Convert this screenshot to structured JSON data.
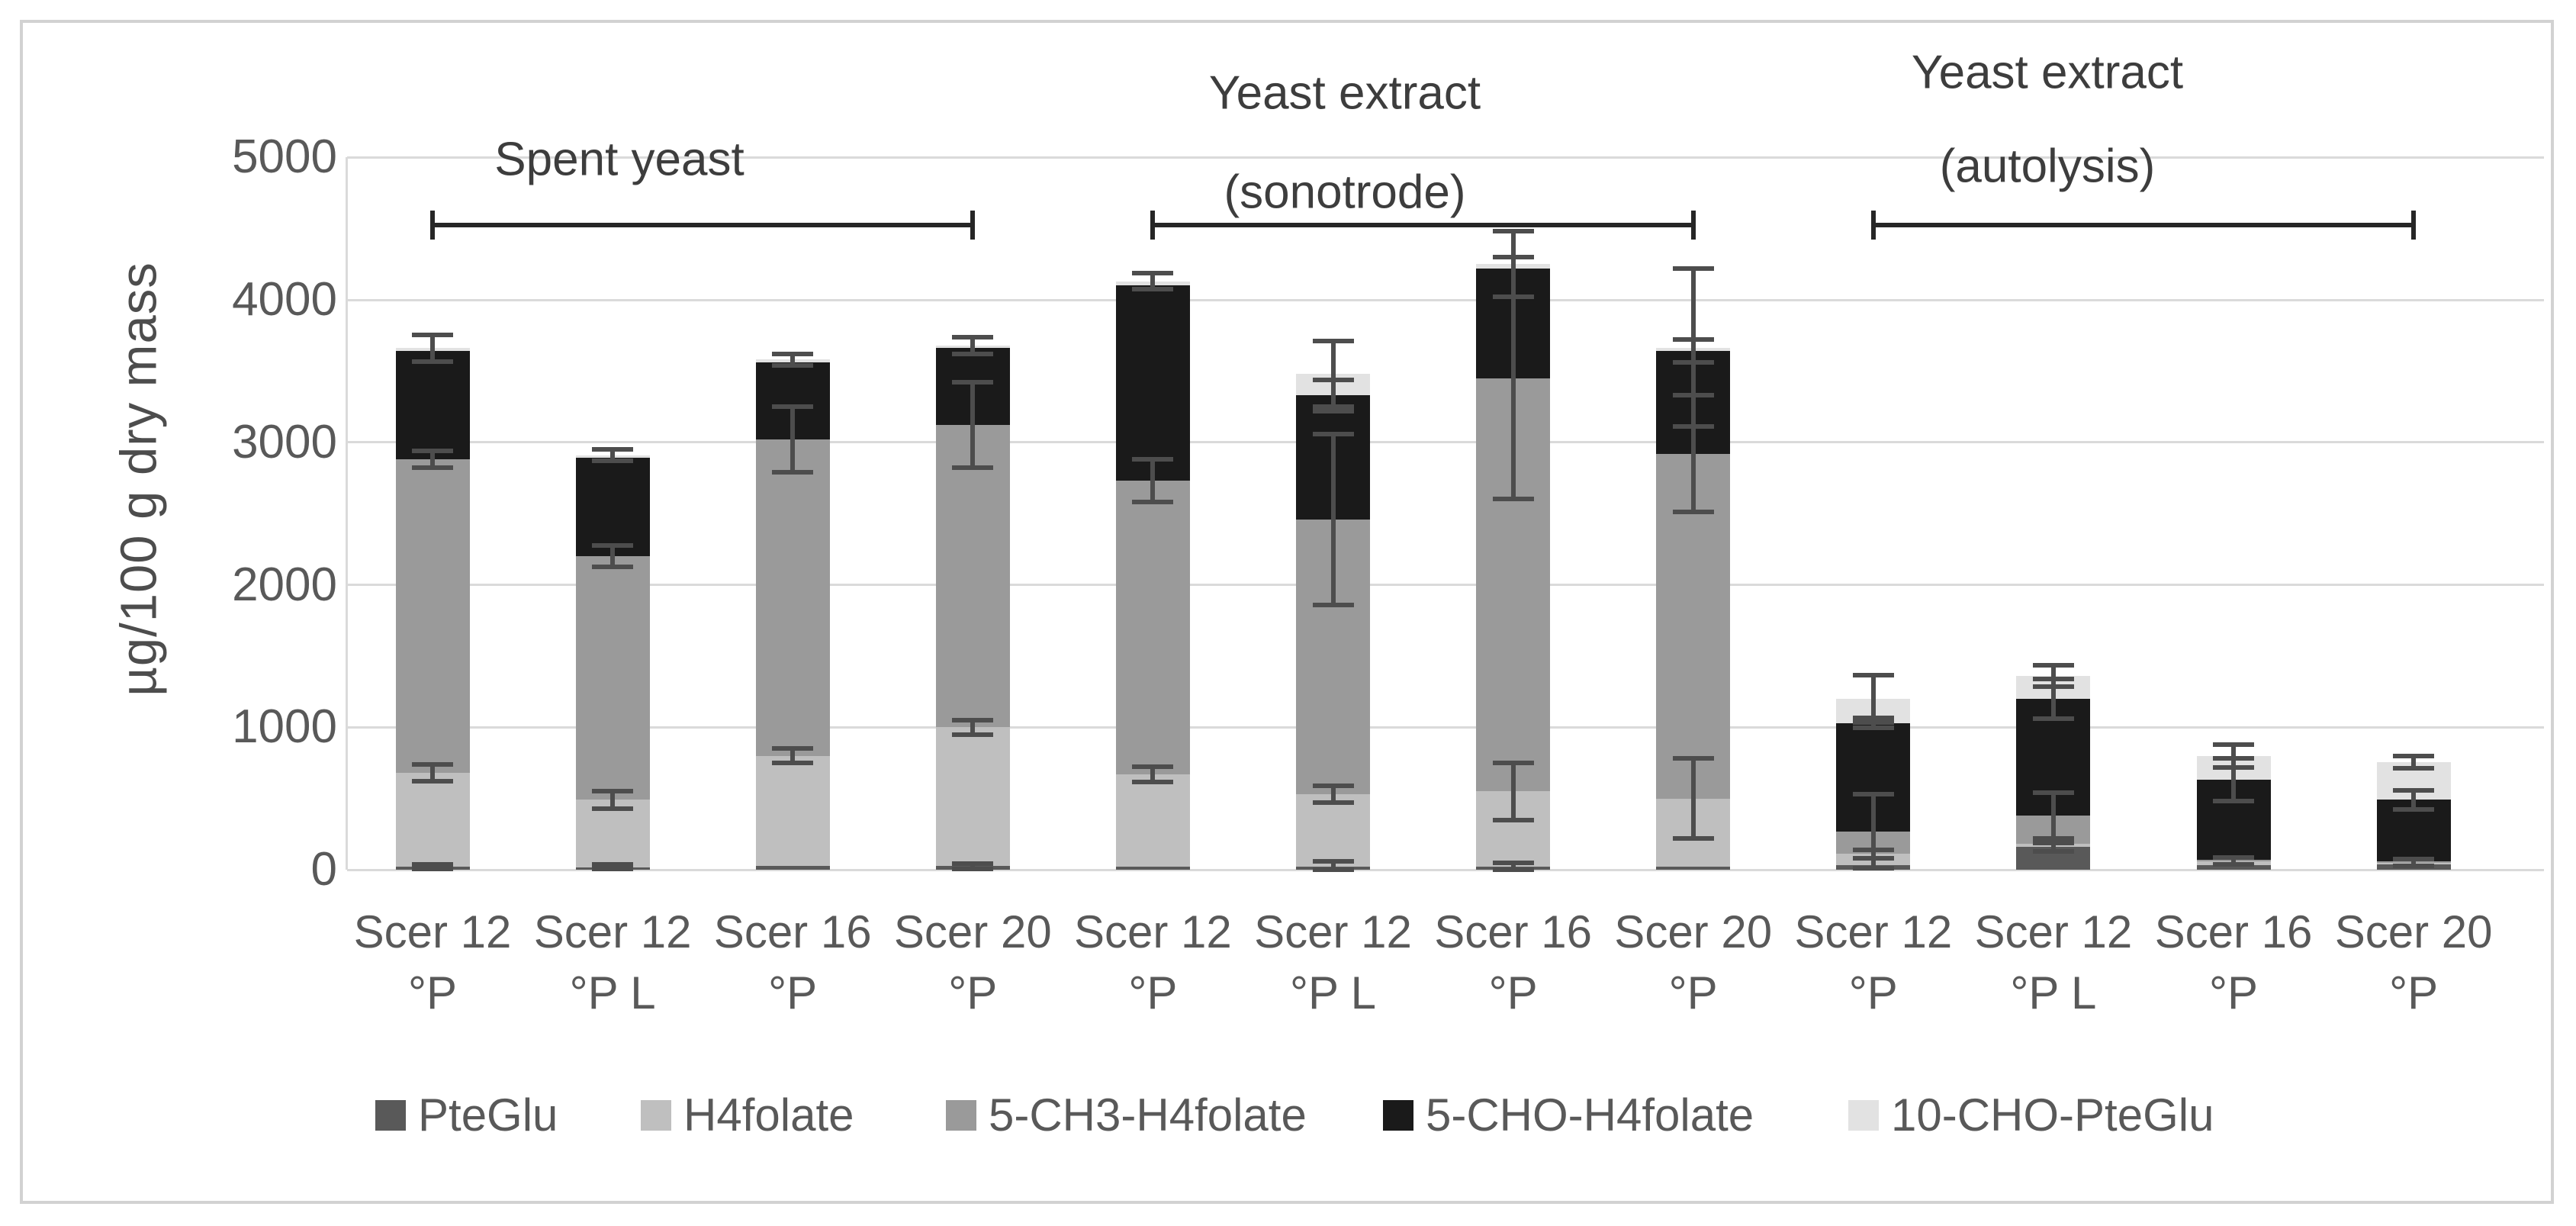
{
  "chart_data": {
    "type": "bar",
    "stacked": true,
    "title": "",
    "xlabel": "",
    "ylabel": "µg/100 g dry mass",
    "ylim": [
      0,
      5000
    ],
    "yticks": [
      0,
      1000,
      2000,
      3000,
      4000,
      5000
    ],
    "grid": true,
    "legend_position": "bottom",
    "categories": [
      "Scer 12 °P",
      "Scer 12 °P L",
      "Scer 16 °P",
      "Scer 20 °P",
      "Scer 12 °P",
      "Scer 12 °P L",
      "Scer 16 °P",
      "Scer 20 °P",
      "Scer 12 °P",
      "Scer 12 °P L",
      "Scer 16 °P",
      "Scer 20 °P"
    ],
    "category_lines": [
      [
        "Scer 12",
        "°P"
      ],
      [
        "Scer 12",
        "°P L"
      ],
      [
        "Scer 16",
        "°P"
      ],
      [
        "Scer 20",
        "°P"
      ],
      [
        "Scer 12",
        "°P"
      ],
      [
        "Scer 12",
        "°P L"
      ],
      [
        "Scer 16",
        "°P"
      ],
      [
        "Scer 20",
        "°P"
      ],
      [
        "Scer 12",
        "°P"
      ],
      [
        "Scer 12",
        "°P L"
      ],
      [
        "Scer 16",
        "°P"
      ],
      [
        "Scer 20",
        "°P"
      ]
    ],
    "groups": [
      {
        "label_lines": [
          "Spent yeast"
        ],
        "bar_start": 0,
        "bar_end": 3
      },
      {
        "label_lines": [
          "Yeast extract",
          "(sonotrode)"
        ],
        "bar_start": 4,
        "bar_end": 7
      },
      {
        "label_lines": [
          "Yeast extract",
          "(autolysis)"
        ],
        "bar_start": 8,
        "bar_end": 11
      }
    ],
    "series": [
      {
        "name": "PteGlu",
        "color": "#595959",
        "values": [
          20,
          15,
          25,
          25,
          20,
          20,
          20,
          20,
          30,
          160,
          30,
          35
        ]
      },
      {
        "name": "H4folate",
        "color": "#bfbfbf",
        "values": [
          660,
          475,
          775,
          975,
          650,
          510,
          530,
          480,
          80,
          20,
          30,
          15
        ]
      },
      {
        "name": "5-CH3-H4folate",
        "color": "#9a9a9a",
        "values": [
          2200,
          1710,
          2220,
          2120,
          2060,
          1930,
          2900,
          2420,
          160,
          200,
          10,
          10
        ]
      },
      {
        "name": "5-CHO-H4folate",
        "color": "#1a1a1a",
        "values": [
          760,
          690,
          540,
          540,
          1370,
          870,
          770,
          720,
          760,
          820,
          560,
          430
        ]
      },
      {
        "name": "10-CHO-PteGlu",
        "color": "#e2e2e2",
        "values": [
          20,
          20,
          20,
          20,
          30,
          150,
          30,
          25,
          170,
          160,
          170,
          265
        ]
      }
    ],
    "totals": [
      3660,
      2910,
      3580,
      3680,
      4130,
      3480,
      4250,
      3665,
      1200,
      1360,
      800,
      755
    ],
    "error_bars": [
      [
        [
          20,
          15
        ],
        [
          680,
          60
        ],
        [
          2880,
          60
        ],
        [
          3660,
          95
        ]
      ],
      [
        [
          20,
          15
        ],
        [
          490,
          60
        ],
        [
          2200,
          75
        ],
        [
          2910,
          40
        ]
      ],
      [
        [
          800,
          50
        ],
        [
          3020,
          230
        ],
        [
          3580,
          40
        ]
      ],
      [
        [
          25,
          20
        ],
        [
          1000,
          50
        ],
        [
          3120,
          300
        ],
        [
          3680,
          60
        ]
      ],
      [
        [
          670,
          55
        ],
        [
          2730,
          150
        ],
        [
          4130,
          55
        ]
      ],
      [
        [
          20,
          40
        ],
        [
          530,
          60
        ],
        [
          2460,
          600
        ],
        [
          3330,
          110
        ],
        [
          3480,
          230
        ]
      ],
      [
        [
          20,
          30
        ],
        [
          550,
          200
        ],
        [
          3450,
          850
        ],
        [
          4250,
          230
        ]
      ],
      [
        [
          500,
          280
        ],
        [
          2920,
          410
        ],
        [
          3640,
          80
        ],
        [
          3665,
          555
        ]
      ],
      [
        [
          110,
          30
        ],
        [
          270,
          260
        ],
        [
          1030,
          35
        ],
        [
          1200,
          165
        ]
      ],
      [
        [
          160,
          30
        ],
        [
          380,
          160
        ],
        [
          1200,
          140
        ],
        [
          1360,
          75
        ]
      ],
      [
        [
          60,
          25
        ],
        [
          630,
          150
        ],
        [
          800,
          80
        ]
      ],
      [
        [
          50,
          25
        ],
        [
          490,
          65
        ],
        [
          755,
          45
        ]
      ]
    ],
    "colors": {
      "gridline": "#dadada",
      "frame_border": "#d2d2d2",
      "axis_text": "#595959",
      "group_title_text": "#3d3d3d",
      "bracket": "#262626",
      "error_bar": "#4d4d4d",
      "background": "#ffffff"
    }
  }
}
